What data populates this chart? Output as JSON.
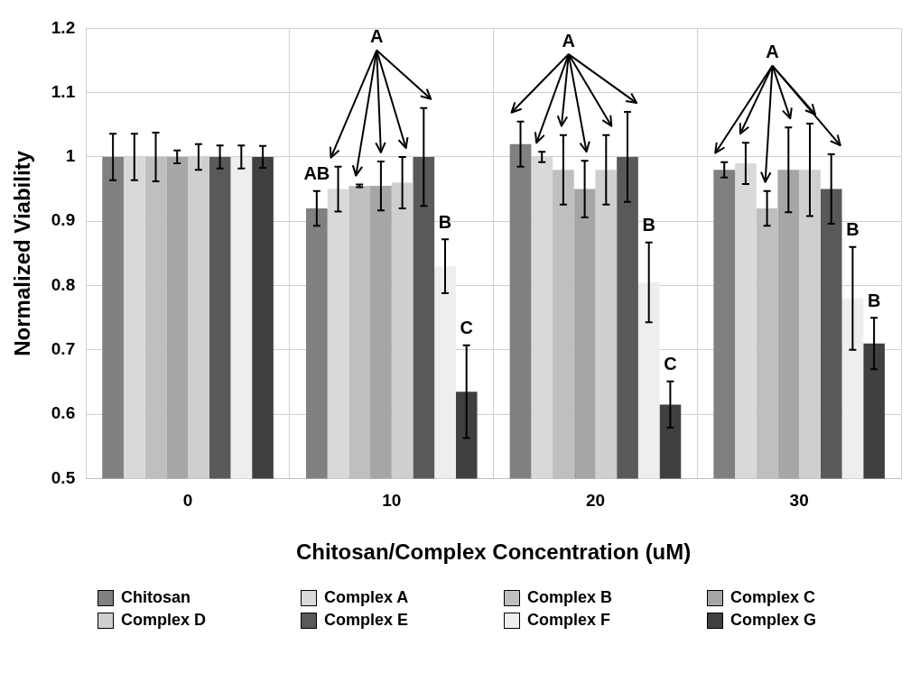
{
  "chart_data": {
    "type": "bar",
    "xlabel": "Chitosan/Complex Concentration (uM)",
    "ylabel": "Normalized Viability",
    "categories": [
      "0",
      "10",
      "20",
      "30"
    ],
    "series": [
      {
        "name": "Chitosan",
        "color": "#808080",
        "values": [
          1.0,
          0.92,
          1.02,
          0.98
        ],
        "errors": [
          0.036,
          0.027,
          0.035,
          0.012
        ]
      },
      {
        "name": "Complex A",
        "color": "#d9d9d9",
        "values": [
          1.0,
          0.95,
          1.0,
          0.99
        ],
        "errors": [
          0.036,
          0.035,
          0.008,
          0.032
        ]
      },
      {
        "name": "Complex B",
        "color": "#bfbfbf",
        "values": [
          1.0,
          0.955,
          0.98,
          0.92
        ],
        "errors": [
          0.038,
          0.002,
          0.054,
          0.027
        ]
      },
      {
        "name": "Complex C",
        "color": "#a6a6a6",
        "values": [
          1.0,
          0.955,
          0.95,
          0.98
        ],
        "errors": [
          0.01,
          0.038,
          0.044,
          0.066
        ]
      },
      {
        "name": "Complex D",
        "color": "#cfcfcf",
        "values": [
          1.0,
          0.96,
          0.98,
          0.98
        ],
        "errors": [
          0.02,
          0.04,
          0.054,
          0.072
        ]
      },
      {
        "name": "Complex E",
        "color": "#595959",
        "values": [
          1.0,
          1.0,
          1.0,
          0.95
        ],
        "errors": [
          0.018,
          0.076,
          0.07,
          0.054
        ]
      },
      {
        "name": "Complex F",
        "color": "#eeeeee",
        "values": [
          1.0,
          0.83,
          0.805,
          0.78
        ],
        "errors": [
          0.018,
          0.042,
          0.062,
          0.08
        ]
      },
      {
        "name": "Complex G",
        "color": "#404040",
        "values": [
          1.0,
          0.635,
          0.615,
          0.71
        ],
        "errors": [
          0.017,
          0.072,
          0.036,
          0.04
        ]
      }
    ],
    "ylim": [
      0.5,
      1.2
    ],
    "yticks": [
      0.5,
      0.6,
      0.7,
      0.8,
      0.9,
      1,
      1.1,
      1.2
    ],
    "grid": true,
    "legend": "bottom",
    "annotations": [
      "A",
      "AB",
      "B",
      "C",
      "A",
      "B",
      "C",
      "A",
      "B",
      "B"
    ]
  }
}
